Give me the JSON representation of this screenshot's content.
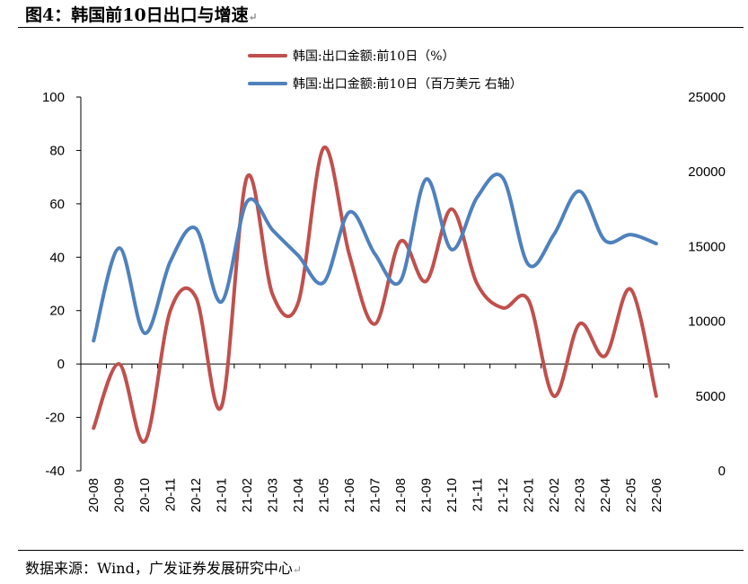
{
  "figure": {
    "title": "图4：韩国前10日出口与增速",
    "source": "数据来源：Wind，广发证券发展研究中心"
  },
  "colors": {
    "series_pct": "#c0504d",
    "series_usd": "#4f81bd"
  },
  "chart_data": {
    "type": "line",
    "categories": [
      "20-08",
      "20-09",
      "20-10",
      "20-11",
      "20-12",
      "21-01",
      "21-02",
      "21-03",
      "21-04",
      "21-05",
      "21-06",
      "21-07",
      "21-08",
      "21-09",
      "21-10",
      "21-11",
      "21-12",
      "22-01",
      "22-02",
      "22-03",
      "22-04",
      "22-05",
      "22-06"
    ],
    "y_left": {
      "ylim": [
        -40,
        100
      ],
      "ticks": [
        "100",
        "80",
        "60",
        "40",
        "20",
        "0",
        "-20",
        "-40"
      ],
      "tick_values": [
        100,
        80,
        60,
        40,
        20,
        0,
        -20,
        -40
      ]
    },
    "y_right": {
      "ylim": [
        0,
        25000
      ],
      "ticks": [
        "25000",
        "20000",
        "15000",
        "10000",
        "5000",
        "0"
      ],
      "tick_values": [
        25000,
        20000,
        15000,
        10000,
        5000,
        0
      ]
    },
    "series": [
      {
        "name": "韩国:出口金额:前10日（%）",
        "axis": "left",
        "values": [
          -24,
          0,
          -29,
          20,
          25,
          -16,
          70,
          26,
          23,
          81,
          41,
          15,
          46,
          31,
          58,
          30,
          21,
          24,
          -12,
          15,
          3,
          28,
          -12
        ]
      },
      {
        "name": "韩国:出口金额:前10日（百万美元 右轴）",
        "axis": "right",
        "values": [
          8700,
          14900,
          9200,
          14000,
          16200,
          11300,
          18000,
          16100,
          14400,
          12600,
          17300,
          14500,
          12700,
          19500,
          14800,
          18300,
          19600,
          13800,
          15800,
          18700,
          15400,
          15800,
          15200
        ]
      }
    ]
  }
}
